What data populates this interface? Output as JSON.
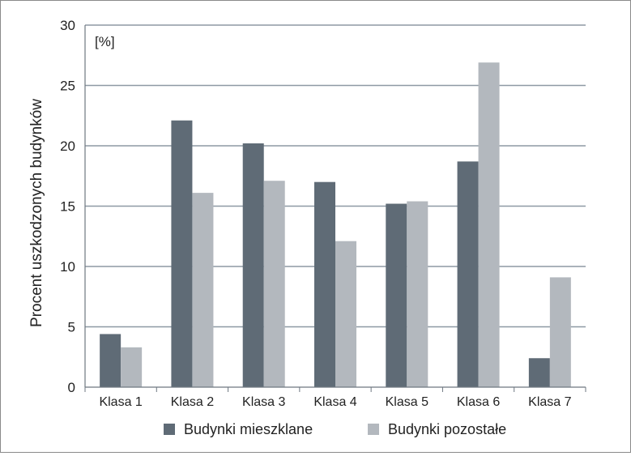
{
  "chart_data": {
    "type": "bar",
    "title": "",
    "unit_label": "[%]",
    "xlabel": "",
    "ylabel": "Procent uszkodzonych budynków",
    "ylim": [
      0,
      30
    ],
    "yticks": [
      0,
      5,
      10,
      15,
      20,
      25,
      30
    ],
    "grid": true,
    "legend_position": "bottom",
    "categories": [
      "Klasa 1",
      "Klasa 2",
      "Klasa 3",
      "Klasa 4",
      "Klasa 5",
      "Klasa 6",
      "Klasa 7"
    ],
    "series": [
      {
        "name": "Budynki mieszklane",
        "color": "#5f6b76",
        "values": [
          4.4,
          22.1,
          20.2,
          17.0,
          15.2,
          18.7,
          2.4
        ]
      },
      {
        "name": "Budynki pozostałe",
        "color": "#b3b8be",
        "values": [
          3.3,
          16.1,
          17.1,
          12.1,
          15.4,
          26.9,
          9.1
        ]
      }
    ]
  }
}
